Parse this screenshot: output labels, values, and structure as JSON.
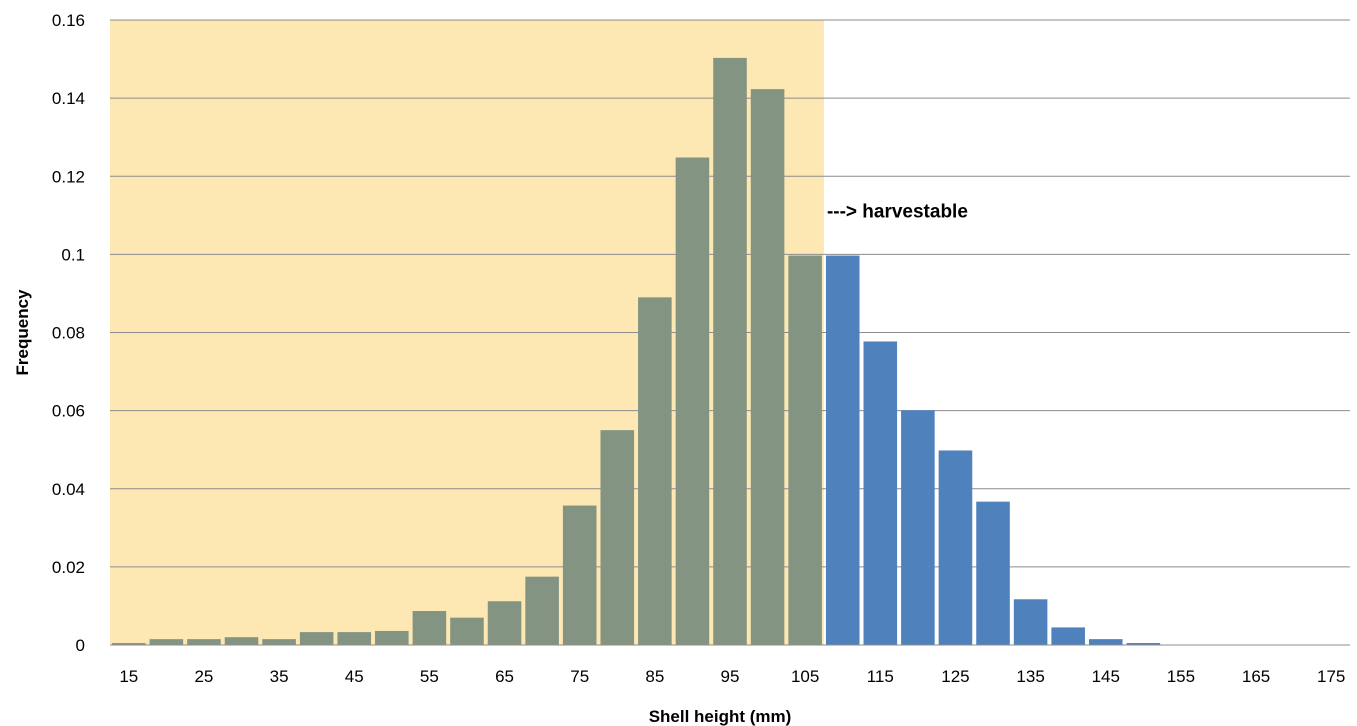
{
  "chart_data": {
    "type": "bar",
    "xlabel": "Shell height (mm)",
    "ylabel": "Frequency",
    "ylim": [
      0,
      0.16
    ],
    "yticks": [
      "0",
      "0.02",
      "0.04",
      "0.06",
      "0.08",
      "0.1",
      "0.12",
      "0.14",
      "0.16"
    ],
    "grid": true,
    "x_tick_labels": [
      "15",
      "25",
      "35",
      "45",
      "55",
      "65",
      "75",
      "85",
      "95",
      "105",
      "115",
      "125",
      "135",
      "145",
      "155",
      "165",
      "175"
    ],
    "bins": [
      15,
      20,
      25,
      30,
      35,
      40,
      45,
      50,
      55,
      60,
      65,
      70,
      75,
      80,
      85,
      90,
      95,
      100,
      105,
      110,
      115,
      120,
      125,
      130,
      135,
      140,
      145,
      150,
      155,
      160,
      165,
      170,
      175
    ],
    "values": [
      0.0005,
      0.0015,
      0.0015,
      0.002,
      0.0015,
      0.0033,
      0.0033,
      0.0036,
      0.0087,
      0.007,
      0.0112,
      0.0175,
      0.0357,
      0.055,
      0.089,
      0.1248,
      0.1503,
      0.1423,
      0.0997,
      0.0997,
      0.0777,
      0.0601,
      0.0498,
      0.0367,
      0.0117,
      0.0045,
      0.0015,
      0.0005,
      0,
      0,
      0,
      0,
      0
    ],
    "harvestable_from": 105,
    "shaded_region_end": 105,
    "colors": {
      "sub_legal_bar": "#849483",
      "harvestable_bar": "#4f81bd",
      "shaded_region": "#fde8b3",
      "gridline": "#8c8c8c"
    },
    "annotations": [
      {
        "text": "---> harvestable"
      }
    ]
  }
}
